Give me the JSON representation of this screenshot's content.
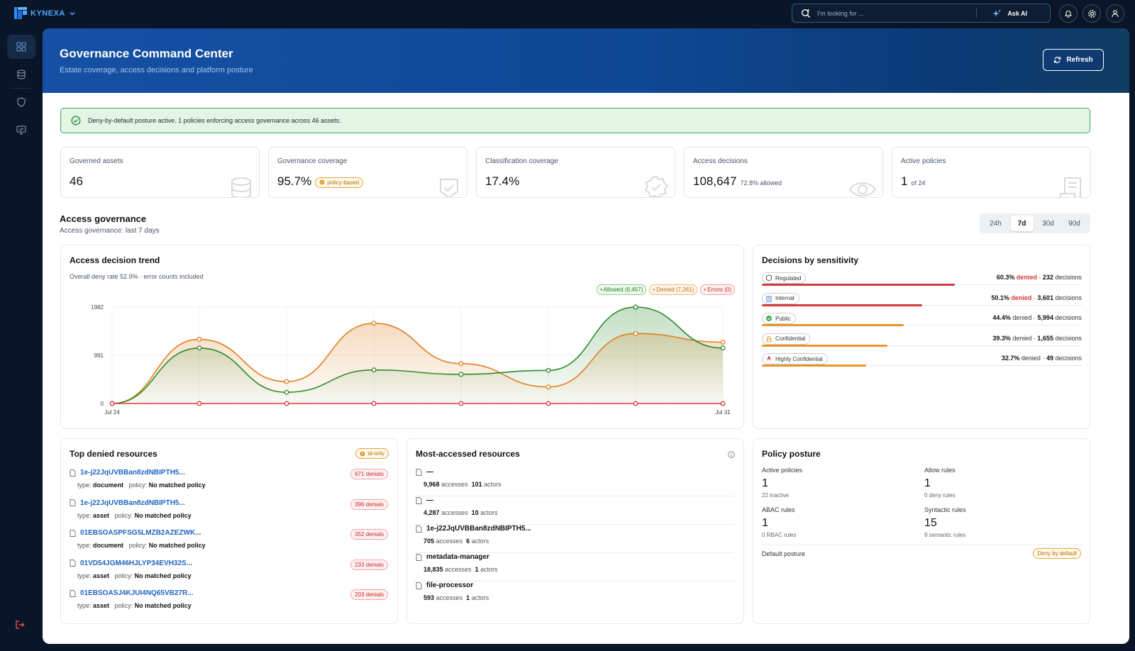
{
  "app": {
    "name": "KYNEXA"
  },
  "search": {
    "placeholder": "I'm looking for ...",
    "ask_ai": "Ask AI"
  },
  "header": {
    "title": "Governance Command Center",
    "subtitle": "Estate coverage, access decisions and platform posture",
    "refresh_label": "Refresh"
  },
  "alert": {
    "text": "Deny-by-default posture active. 1 policies enforcing access governance across 46 assets."
  },
  "stats": [
    {
      "label": "Governed assets",
      "value": "46",
      "note": "",
      "icon": "database-icon"
    },
    {
      "label": "Governance coverage",
      "value": "95.7%",
      "badge": "policy-based",
      "icon": "shield-check-icon"
    },
    {
      "label": "Classification coverage",
      "value": "17.4%",
      "note": "",
      "icon": "badge-check-icon"
    },
    {
      "label": "Access decisions",
      "value": "108,647",
      "note": "72.8% allowed",
      "icon": "eye-icon"
    },
    {
      "label": "Active policies",
      "value": "1",
      "note": "of 24",
      "icon": "scroll-icon"
    }
  ],
  "access_governance": {
    "title": "Access governance",
    "subtitle": "Access governance: last 7 days",
    "ranges": [
      "24h",
      "7d",
      "30d",
      "90d"
    ],
    "selected_range": "7d"
  },
  "trend": {
    "title": "Access decision trend",
    "subtitle": "Overall deny rate 52.9% · error counts included",
    "legend": {
      "allowed": "• Allowed (6,457)",
      "denied": "• Denied (7,261)",
      "errors": "• Errors (0)"
    }
  },
  "chart_data": {
    "type": "line",
    "x": [
      "Jul 24",
      "Jul 25",
      "Jul 26",
      "Jul 27",
      "Jul 28",
      "Jul 29",
      "Jul 30",
      "Jul 31"
    ],
    "x_tick_labels": [
      "Jul 24",
      "Jul 31"
    ],
    "y_ticks": [
      "1982",
      "991",
      "0"
    ],
    "ylim": [
      0,
      1982
    ],
    "grid": true,
    "legend_position": "top-right",
    "series": [
      {
        "name": "Allowed",
        "color": "#2e8b2e",
        "values": [
          0,
          1140,
          230,
          690,
          600,
          680,
          1982,
          1140
        ]
      },
      {
        "name": "Denied",
        "color": "#e07f1f",
        "values": [
          0,
          1320,
          450,
          1650,
          820,
          340,
          1440,
          1260
        ]
      },
      {
        "name": "Errors",
        "color": "#d63b3b",
        "values": [
          0,
          0,
          0,
          0,
          0,
          0,
          0,
          0
        ]
      }
    ]
  },
  "sensitivity": {
    "title": "Decisions by sensitivity",
    "rows": [
      {
        "label": "Regulated",
        "pct": "60.3%",
        "denied_word": "denied",
        "count": "232",
        "decisions_word": "decisions",
        "fraction": 0.603,
        "color": "#d33a3a",
        "emph": true,
        "icon": "shield-icon"
      },
      {
        "label": "Internal",
        "pct": "50.1%",
        "denied_word": "denied",
        "count": "3,601",
        "decisions_word": "decisions",
        "fraction": 0.501,
        "color": "#d33a3a",
        "emph": true,
        "icon": "building-icon"
      },
      {
        "label": "Public",
        "pct": "44.4%",
        "denied_word": "denied",
        "count": "5,994",
        "decisions_word": "decisions",
        "fraction": 0.444,
        "color": "#e8962a",
        "emph": false,
        "icon": "globe-icon"
      },
      {
        "label": "Confidential",
        "pct": "39.3%",
        "denied_word": "denied",
        "count": "1,655",
        "decisions_word": "decisions",
        "fraction": 0.393,
        "color": "#e8962a",
        "emph": false,
        "icon": "lock-icon"
      },
      {
        "label": "Highly Confidential",
        "pct": "32.7%",
        "denied_word": "denied",
        "count": "49",
        "decisions_word": "decisions",
        "fraction": 0.327,
        "color": "#e8962a",
        "emph": false,
        "icon": "alert-icon"
      }
    ]
  },
  "top_denied": {
    "title": "Top denied resources",
    "badge": "id-only",
    "type_word": "type:",
    "policy_word": "policy:",
    "rows": [
      {
        "name": "1e-j22JqUVBBan8zdNBIPTH5...",
        "type": "document",
        "policy": "No matched policy",
        "denials": "671 denials"
      },
      {
        "name": "1e-j22JqUVBBan8zdNBIPTH5...",
        "type": "asset",
        "policy": "No matched policy",
        "denials": "396 denials"
      },
      {
        "name": "01EBSOASPFSG5LMZB2AZEZWK...",
        "type": "document",
        "policy": "No matched policy",
        "denials": "352 denials"
      },
      {
        "name": "01VD54JGM46HJLYP34EVH32S...",
        "type": "asset",
        "policy": "No matched policy",
        "denials": "233 denials"
      },
      {
        "name": "01EBSOASJ4KJUI4NQ65VB27R...",
        "type": "asset",
        "policy": "No matched policy",
        "denials": "203 denials"
      }
    ]
  },
  "most_accessed": {
    "title": "Most-accessed resources",
    "accesses_word": "accesses",
    "actors_word": "actors",
    "rows": [
      {
        "name": "—",
        "accesses": "9,968",
        "actors": "101"
      },
      {
        "name": "—",
        "accesses": "4,287",
        "actors": "10"
      },
      {
        "name": "1e-j22JqUVBBan8zdNBIPTH5...",
        "accesses": "705",
        "actors": "6"
      },
      {
        "name": "metadata-manager",
        "accesses": "18,835",
        "actors": "1"
      },
      {
        "name": "file-processor",
        "accesses": "593",
        "actors": "1"
      }
    ]
  },
  "policy_posture": {
    "title": "Policy posture",
    "active_policies": {
      "label": "Active policies",
      "value": "1",
      "sub": "22 inactive"
    },
    "allow_rules": {
      "label": "Allow rules",
      "value": "1",
      "sub": "0 deny rules"
    },
    "abac_rules": {
      "label": "ABAC rules",
      "value": "1",
      "sub": "0 RBAC rules"
    },
    "syntactic_rules": {
      "label": "Syntactic rules",
      "value": "15",
      "sub": "9 semantic rules"
    },
    "default_posture": {
      "label": "Default posture",
      "value": "Deny by default"
    }
  },
  "colors": {
    "accent": "#1550a4",
    "allowed": "#2e8b2e",
    "denied": "#e07f1f",
    "errors": "#d63b3b",
    "alert_bg": "#e4f5e6"
  }
}
